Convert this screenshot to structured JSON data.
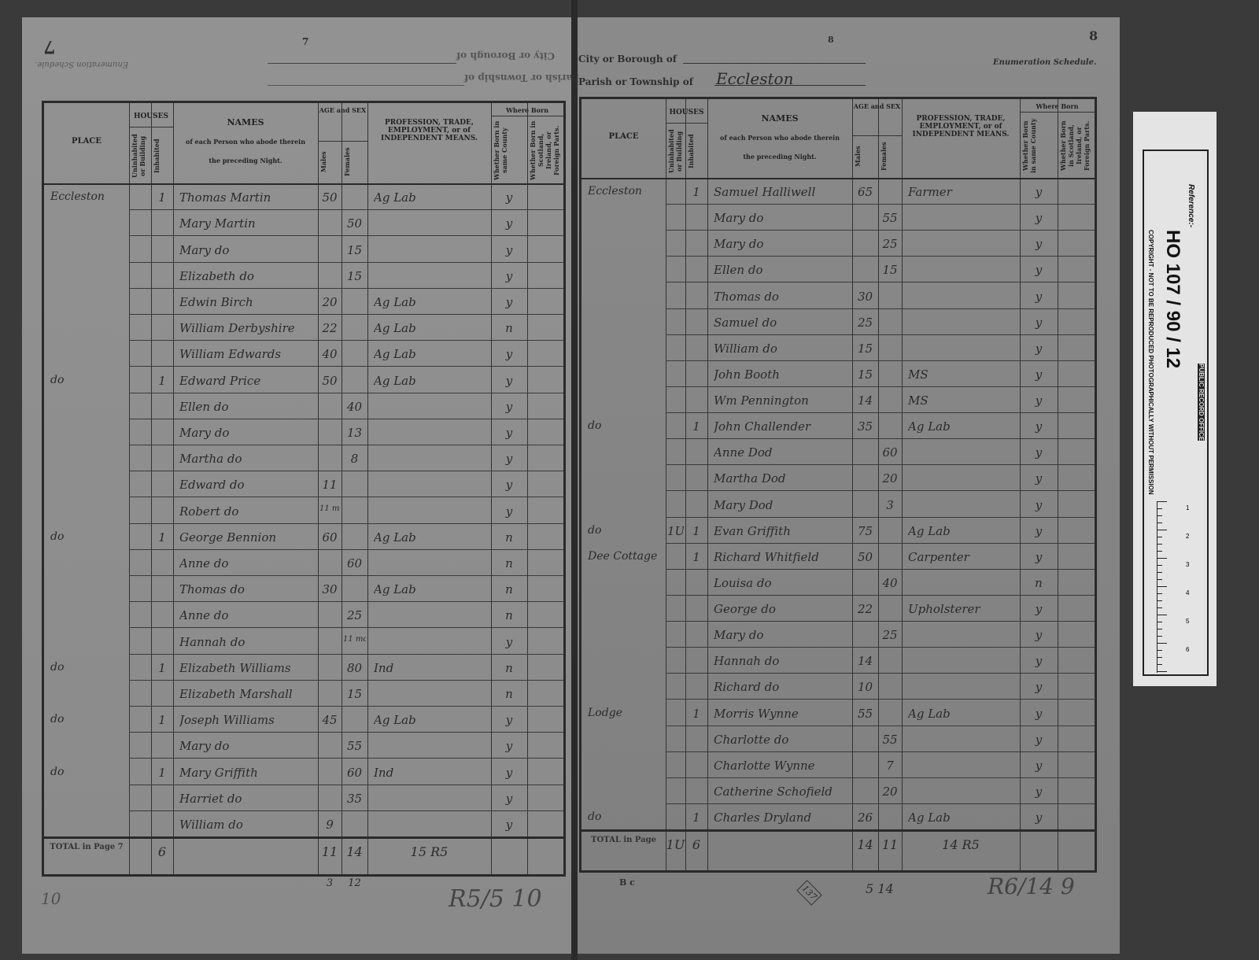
{
  "left_page": {
    "page_number": "7",
    "folio_mark": "7",
    "header_lines": [
      "City or Borough of",
      "Parish or Township of"
    ],
    "schedule_label": "Enumeration Schedule.",
    "columns": {
      "place": "PLACE",
      "houses": "HOUSES",
      "uninhabited": "Uninhabited or Building",
      "inhabited": "Inhabited",
      "names_title": "NAMES",
      "names_sub1": "of each Person who abode therein",
      "names_sub2": "the preceding Night.",
      "age": "AGE and SEX",
      "males": "Males",
      "females": "Females",
      "profession": "PROFESSION, TRADE, EMPLOYMENT, or of INDEPENDENT MEANS.",
      "where_born": "Where Born",
      "same_county": "Whether Born in same County",
      "foreign": "Whether Born in Scotland, Ireland, or Foreign Parts."
    },
    "rows": [
      [
        "Eccleston",
        "",
        "1",
        "Thomas Martin",
        "50",
        "",
        "Ag Lab",
        "y"
      ],
      [
        "",
        "",
        "",
        "Mary Martin",
        "",
        "50",
        "",
        "y"
      ],
      [
        "",
        "",
        "",
        "Mary do",
        "",
        "15",
        "",
        "y"
      ],
      [
        "",
        "",
        "",
        "Elizabeth do",
        "",
        "15",
        "",
        "y"
      ],
      [
        "",
        "",
        "",
        "Edwin Birch",
        "20",
        "",
        "Ag Lab",
        "y"
      ],
      [
        "",
        "",
        "",
        "William Derbyshire",
        "22",
        "",
        "Ag Lab",
        "n"
      ],
      [
        "",
        "",
        "",
        "William Edwards",
        "40",
        "",
        "Ag Lab",
        "y"
      ],
      [
        "do",
        "",
        "1",
        "Edward Price",
        "50",
        "",
        "Ag Lab",
        "y"
      ],
      [
        "",
        "",
        "",
        "Ellen do",
        "",
        "40",
        "",
        "y"
      ],
      [
        "",
        "",
        "",
        "Mary do",
        "",
        "13",
        "",
        "y"
      ],
      [
        "",
        "",
        "",
        "Martha do",
        "",
        "8",
        "",
        "y"
      ],
      [
        "",
        "",
        "",
        "Edward do",
        "11",
        "",
        "",
        "y"
      ],
      [
        "",
        "",
        "",
        "Robert do",
        "11 months",
        "",
        "",
        "y"
      ],
      [
        "do",
        "",
        "1",
        "George Bennion",
        "60",
        "",
        "Ag Lab",
        "n"
      ],
      [
        "",
        "",
        "",
        "Anne do",
        "",
        "60",
        "",
        "n"
      ],
      [
        "",
        "",
        "",
        "Thomas do",
        "30",
        "",
        "Ag Lab",
        "n"
      ],
      [
        "",
        "",
        "",
        "Anne do",
        "",
        "25",
        "",
        "n"
      ],
      [
        "",
        "",
        "",
        "Hannah do",
        "",
        "11 months",
        "",
        "y"
      ],
      [
        "do",
        "",
        "1",
        "Elizabeth Williams",
        "",
        "80",
        "Ind",
        "n"
      ],
      [
        "",
        "",
        "",
        "Elizabeth Marshall",
        "",
        "15",
        "",
        "n"
      ],
      [
        "do",
        "",
        "1",
        "Joseph Williams",
        "45",
        "",
        "Ag Lab",
        "y"
      ],
      [
        "",
        "",
        "",
        "Mary do",
        "",
        "55",
        "",
        "y"
      ],
      [
        "do",
        "",
        "1",
        "Mary Griffith",
        "",
        "60",
        "Ind",
        "y"
      ],
      [
        "",
        "",
        "",
        "Harriet do",
        "",
        "35",
        "",
        "y"
      ],
      [
        "",
        "",
        "",
        "William do",
        "9",
        "",
        "",
        "y"
      ]
    ],
    "total_label": "TOTAL in Page 7",
    "totals": {
      "uninhabited": "",
      "inhabited": "6",
      "males": "11",
      "females": "14",
      "profession": "15 R5",
      "below_males": "3",
      "below_females": "12"
    },
    "footer_marks": [
      "10",
      "R5/5 10"
    ]
  },
  "right_page": {
    "page_number": "8",
    "folio_mark": "8",
    "header_lines": [
      "City or Borough of",
      "Parish or Township of"
    ],
    "parish_value": "Eccleston",
    "schedule_label": "Enumeration Schedule.",
    "rows": [
      [
        "Eccleston",
        "",
        "1",
        "Samuel Halliwell",
        "65",
        "",
        "Farmer",
        "y"
      ],
      [
        "",
        "",
        "",
        "Mary do",
        "",
        "55",
        "",
        "y"
      ],
      [
        "",
        "",
        "",
        "Mary do",
        "",
        "25",
        "",
        "y"
      ],
      [
        "",
        "",
        "",
        "Ellen do",
        "",
        "15",
        "",
        "y"
      ],
      [
        "",
        "",
        "",
        "Thomas do",
        "30",
        "",
        "",
        "y"
      ],
      [
        "",
        "",
        "",
        "Samuel do",
        "25",
        "",
        "",
        "y"
      ],
      [
        "",
        "",
        "",
        "William do",
        "15",
        "",
        "",
        "y"
      ],
      [
        "",
        "",
        "",
        "John Booth",
        "15",
        "",
        "MS",
        "y"
      ],
      [
        "",
        "",
        "",
        "Wm Pennington",
        "14",
        "",
        "MS",
        "y"
      ],
      [
        "do",
        "",
        "1",
        "John Challender",
        "35",
        "",
        "Ag Lab",
        "y"
      ],
      [
        "",
        "",
        "",
        "Anne Dod",
        "",
        "60",
        "",
        "y"
      ],
      [
        "",
        "",
        "",
        "Martha Dod",
        "",
        "20",
        "",
        "y"
      ],
      [
        "",
        "",
        "",
        "Mary Dod",
        "",
        "3",
        "",
        "y"
      ],
      [
        "do",
        "1U",
        "1",
        "Evan Griffith",
        "75",
        "",
        "Ag Lab",
        "y"
      ],
      [
        "Dee Cottage",
        "",
        "1",
        "Richard Whitfield",
        "50",
        "",
        "Carpenter",
        "y"
      ],
      [
        "",
        "",
        "",
        "Louisa do",
        "",
        "40",
        "",
        "n"
      ],
      [
        "",
        "",
        "",
        "George do",
        "22",
        "",
        "Upholsterer",
        "y"
      ],
      [
        "",
        "",
        "",
        "Mary do",
        "",
        "25",
        "",
        "y"
      ],
      [
        "",
        "",
        "",
        "Hannah do",
        "14",
        "",
        "",
        "y"
      ],
      [
        "",
        "",
        "",
        "Richard do",
        "10",
        "",
        "",
        "y"
      ],
      [
        "Lodge",
        "",
        "1",
        "Morris Wynne",
        "55",
        "",
        "Ag Lab",
        "y"
      ],
      [
        "",
        "",
        "",
        "Charlotte do",
        "",
        "55",
        "",
        "y"
      ],
      [
        "",
        "",
        "",
        "Charlotte Wynne",
        "",
        "7",
        "",
        "y"
      ],
      [
        "",
        "",
        "",
        "Catherine Schofield",
        "",
        "20",
        "",
        "y"
      ],
      [
        "do",
        "",
        "1",
        "Charles Dryland",
        "26",
        "",
        "Ag Lab",
        "y"
      ]
    ],
    "total_label": "TOTAL in Page",
    "totals": {
      "uninhabited": "1U",
      "inhabited": "6",
      "males": "14",
      "females": "11",
      "profession": "14 R5"
    },
    "footer_marks": [
      "B c",
      "137",
      "5 14",
      "R6/14 9"
    ]
  },
  "reference_strip": {
    "label": "Reference:-",
    "reference": "HO 107 / 90 / 12",
    "copyright": "COPYRIGHT - NOT TO BE REPRODUCED PHOTOGRAPHICALLY WITHOUT PERMISSION",
    "office": "PUBLIC RECORD OFFICE",
    "scale_marks": [
      "1",
      "2",
      "3",
      "4",
      "5",
      "6"
    ]
  }
}
